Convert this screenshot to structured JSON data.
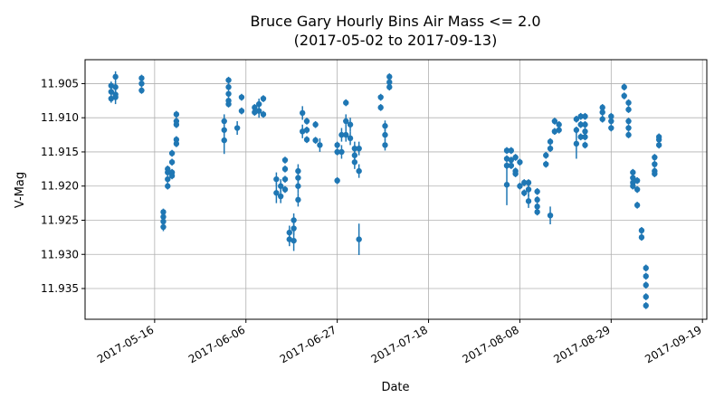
{
  "chart_data": {
    "type": "scatter",
    "title": "Bruce Gary Hourly Bins Air Mass <= 2.0",
    "subtitle": "(2017-05-02 to 2017-09-13)",
    "xlabel": "Date",
    "ylabel": "V-Mag",
    "y_inverted": true,
    "ylim": [
      11.9395,
      11.9015
    ],
    "xlim": [
      "2017-04-30",
      "2017-09-20"
    ],
    "grid": true,
    "color": "#1f77b4",
    "xticks": [
      "2017-05-16",
      "2017-06-06",
      "2017-06-27",
      "2017-07-18",
      "2017-08-08",
      "2017-08-29",
      "2017-09-19"
    ],
    "yticks": [
      "11.905",
      "11.910",
      "11.915",
      "11.920",
      "11.925",
      "11.930",
      "11.935"
    ],
    "points": [
      [
        "2017-05-06",
        11.9053,
        0.0006
      ],
      [
        "2017-05-06",
        11.9062,
        0.0006
      ],
      [
        "2017-05-06",
        11.9072,
        0.0006
      ],
      [
        "2017-05-07",
        11.904,
        0.0008
      ],
      [
        "2017-05-07",
        11.9055,
        0.0008
      ],
      [
        "2017-05-07",
        11.9066,
        0.0008
      ],
      [
        "2017-05-07",
        11.907,
        0.001
      ],
      [
        "2017-05-13",
        11.9042,
        0.0005
      ],
      [
        "2017-05-13",
        11.905,
        0.0005
      ],
      [
        "2017-05-13",
        11.906,
        0.0005
      ],
      [
        "2017-05-18",
        11.9238,
        0.0005
      ],
      [
        "2017-05-18",
        11.9245,
        0.0005
      ],
      [
        "2017-05-18",
        11.9252,
        0.0005
      ],
      [
        "2017-05-18",
        11.926,
        0.0006
      ],
      [
        "2017-05-19",
        11.918,
        0.0005
      ],
      [
        "2017-05-19",
        11.919,
        0.0005
      ],
      [
        "2017-05-19",
        11.92,
        0.0005
      ],
      [
        "2017-05-19",
        11.9175,
        0.0005
      ],
      [
        "2017-05-20",
        11.9152,
        0.0005
      ],
      [
        "2017-05-20",
        11.9165,
        0.0005
      ],
      [
        "2017-05-20",
        11.918,
        0.0005
      ],
      [
        "2017-05-20",
        11.9185,
        0.0005
      ],
      [
        "2017-05-21",
        11.9095,
        0.0005
      ],
      [
        "2017-05-21",
        11.9105,
        0.0005
      ],
      [
        "2017-05-21",
        11.911,
        0.0005
      ],
      [
        "2017-05-21",
        11.9132,
        0.0005
      ],
      [
        "2017-05-21",
        11.9138,
        0.0005
      ],
      [
        "2017-06-01",
        11.9105,
        0.001
      ],
      [
        "2017-06-01",
        11.9118,
        0.001
      ],
      [
        "2017-06-01",
        11.9133,
        0.002
      ],
      [
        "2017-06-02",
        11.9045,
        0.0005
      ],
      [
        "2017-06-02",
        11.9055,
        0.0005
      ],
      [
        "2017-06-02",
        11.9065,
        0.0005
      ],
      [
        "2017-06-02",
        11.9075,
        0.0005
      ],
      [
        "2017-06-02",
        11.908,
        0.0005
      ],
      [
        "2017-06-05",
        11.907,
        0.0005
      ],
      [
        "2017-06-05",
        11.909,
        0.0005
      ],
      [
        "2017-06-04",
        11.9115,
        0.001
      ],
      [
        "2017-06-08",
        11.9085,
        0.0005
      ],
      [
        "2017-06-08",
        11.9092,
        0.0005
      ],
      [
        "2017-06-09",
        11.908,
        0.0008
      ],
      [
        "2017-06-09",
        11.909,
        0.001
      ],
      [
        "2017-06-10",
        11.9072,
        0.0005
      ],
      [
        "2017-06-10",
        11.9095,
        0.0005
      ],
      [
        "2017-06-13",
        11.919,
        0.001
      ],
      [
        "2017-06-13",
        11.921,
        0.0015
      ],
      [
        "2017-06-14",
        11.92,
        0.001
      ],
      [
        "2017-06-14",
        11.9215,
        0.001
      ],
      [
        "2017-06-15",
        11.9162,
        0.0005
      ],
      [
        "2017-06-15",
        11.9175,
        0.0005
      ],
      [
        "2017-06-15",
        11.919,
        0.0005
      ],
      [
        "2017-06-15",
        11.9205,
        0.0005
      ],
      [
        "2017-06-16",
        11.9268,
        0.001
      ],
      [
        "2017-06-16",
        11.9278,
        0.001
      ],
      [
        "2017-06-17",
        11.925,
        0.001
      ],
      [
        "2017-06-17",
        11.9262,
        0.001
      ],
      [
        "2017-06-17",
        11.928,
        0.0015
      ],
      [
        "2017-06-18",
        11.9178,
        0.001
      ],
      [
        "2017-06-18",
        11.9188,
        0.001
      ],
      [
        "2017-06-18",
        11.92,
        0.001
      ],
      [
        "2017-06-18",
        11.922,
        0.001
      ],
      [
        "2017-06-19",
        11.9093,
        0.001
      ],
      [
        "2017-06-19",
        11.912,
        0.001
      ],
      [
        "2017-06-20",
        11.9105,
        0.0005
      ],
      [
        "2017-06-20",
        11.9118,
        0.0005
      ],
      [
        "2017-06-20",
        11.9132,
        0.0005
      ],
      [
        "2017-06-22",
        11.911,
        0.0005
      ],
      [
        "2017-06-22",
        11.9133,
        0.0005
      ],
      [
        "2017-06-23",
        11.914,
        0.001
      ],
      [
        "2017-06-27",
        11.914,
        0.0005
      ],
      [
        "2017-06-27",
        11.915,
        0.0005
      ],
      [
        "2017-06-27",
        11.9192,
        0.0005
      ],
      [
        "2017-06-28",
        11.9125,
        0.001
      ],
      [
        "2017-06-28",
        11.915,
        0.001
      ],
      [
        "2017-06-29",
        11.9078,
        0.0005
      ],
      [
        "2017-06-29",
        11.9105,
        0.001
      ],
      [
        "2017-06-29",
        11.9125,
        0.001
      ],
      [
        "2017-06-30",
        11.911,
        0.001
      ],
      [
        "2017-06-30",
        11.913,
        0.001
      ],
      [
        "2017-07-01",
        11.9145,
        0.001
      ],
      [
        "2017-07-01",
        11.9155,
        0.001
      ],
      [
        "2017-07-01",
        11.9165,
        0.001
      ],
      [
        "2017-07-02",
        11.9145,
        0.001
      ],
      [
        "2017-07-02",
        11.9178,
        0.001
      ],
      [
        "2017-07-02",
        11.9278,
        0.0023
      ],
      [
        "2017-07-07",
        11.907,
        0.0005
      ],
      [
        "2017-07-07",
        11.9085,
        0.0005
      ],
      [
        "2017-07-08",
        11.9112,
        0.0008
      ],
      [
        "2017-07-08",
        11.9125,
        0.0008
      ],
      [
        "2017-07-08",
        11.914,
        0.0008
      ],
      [
        "2017-07-09",
        11.904,
        0.0005
      ],
      [
        "2017-07-09",
        11.9048,
        0.0005
      ],
      [
        "2017-07-09",
        11.9055,
        0.0005
      ],
      [
        "2017-08-05",
        11.9148,
        0.0005
      ],
      [
        "2017-08-05",
        11.916,
        0.0005
      ],
      [
        "2017-08-05",
        11.917,
        0.0005
      ],
      [
        "2017-08-05",
        11.9198,
        0.003
      ],
      [
        "2017-08-06",
        11.9148,
        0.0005
      ],
      [
        "2017-08-06",
        11.9162,
        0.0005
      ],
      [
        "2017-08-06",
        11.917,
        0.0005
      ],
      [
        "2017-08-07",
        11.9158,
        0.0005
      ],
      [
        "2017-08-07",
        11.9178,
        0.0005
      ],
      [
        "2017-08-07",
        11.9182,
        0.0005
      ],
      [
        "2017-08-08",
        11.9165,
        0.0005
      ],
      [
        "2017-08-08",
        11.92,
        0.0005
      ],
      [
        "2017-08-09",
        11.9195,
        0.0005
      ],
      [
        "2017-08-09",
        11.921,
        0.0005
      ],
      [
        "2017-08-10",
        11.9195,
        0.0005
      ],
      [
        "2017-08-10",
        11.9205,
        0.001
      ],
      [
        "2017-08-10",
        11.9222,
        0.001
      ],
      [
        "2017-08-12",
        11.9208,
        0.0005
      ],
      [
        "2017-08-12",
        11.922,
        0.0005
      ],
      [
        "2017-08-12",
        11.923,
        0.0005
      ],
      [
        "2017-08-12",
        11.9238,
        0.0005
      ],
      [
        "2017-08-14",
        11.9155,
        0.0005
      ],
      [
        "2017-08-14",
        11.9168,
        0.0005
      ],
      [
        "2017-08-15",
        11.9135,
        0.0005
      ],
      [
        "2017-08-15",
        11.9145,
        0.0005
      ],
      [
        "2017-08-15",
        11.9243,
        0.0013
      ],
      [
        "2017-08-16",
        11.9105,
        0.0005
      ],
      [
        "2017-08-16",
        11.912,
        0.0005
      ],
      [
        "2017-08-17",
        11.911,
        0.0005
      ],
      [
        "2017-08-17",
        11.9118,
        0.0005
      ],
      [
        "2017-08-21",
        11.9102,
        0.0005
      ],
      [
        "2017-08-21",
        11.9118,
        0.0005
      ],
      [
        "2017-08-21",
        11.9138,
        0.0022
      ],
      [
        "2017-08-22",
        11.9098,
        0.0005
      ],
      [
        "2017-08-22",
        11.911,
        0.0005
      ],
      [
        "2017-08-22",
        11.9128,
        0.0005
      ],
      [
        "2017-08-23",
        11.9098,
        0.0005
      ],
      [
        "2017-08-23",
        11.911,
        0.0005
      ],
      [
        "2017-08-23",
        11.912,
        0.0005
      ],
      [
        "2017-08-23",
        11.9128,
        0.0005
      ],
      [
        "2017-08-23",
        11.914,
        0.0005
      ],
      [
        "2017-08-27",
        11.9085,
        0.0005
      ],
      [
        "2017-08-27",
        11.9092,
        0.0005
      ],
      [
        "2017-08-27",
        11.9102,
        0.0005
      ],
      [
        "2017-08-29",
        11.9098,
        0.0005
      ],
      [
        "2017-08-29",
        11.9105,
        0.0005
      ],
      [
        "2017-08-29",
        11.9115,
        0.0005
      ],
      [
        "2017-09-01",
        11.9055,
        0.0005
      ],
      [
        "2017-09-01",
        11.9068,
        0.0005
      ],
      [
        "2017-09-02",
        11.9078,
        0.0005
      ],
      [
        "2017-09-02",
        11.9088,
        0.0005
      ],
      [
        "2017-09-02",
        11.9105,
        0.0005
      ],
      [
        "2017-09-02",
        11.9115,
        0.0005
      ],
      [
        "2017-09-02",
        11.9125,
        0.0005
      ],
      [
        "2017-09-03",
        11.918,
        0.0005
      ],
      [
        "2017-09-03",
        11.9188,
        0.0005
      ],
      [
        "2017-09-03",
        11.9195,
        0.0005
      ],
      [
        "2017-09-03",
        11.92,
        0.0005
      ],
      [
        "2017-09-04",
        11.9192,
        0.0005
      ],
      [
        "2017-09-04",
        11.9205,
        0.0005
      ],
      [
        "2017-09-04",
        11.9228,
        0.0005
      ],
      [
        "2017-09-05",
        11.9265,
        0.0005
      ],
      [
        "2017-09-05",
        11.9275,
        0.0005
      ],
      [
        "2017-09-06",
        11.932,
        0.0005
      ],
      [
        "2017-09-06",
        11.9332,
        0.0005
      ],
      [
        "2017-09-06",
        11.9345,
        0.0005
      ],
      [
        "2017-09-06",
        11.9362,
        0.0005
      ],
      [
        "2017-09-06",
        11.9375,
        0.0005
      ],
      [
        "2017-09-08",
        11.9158,
        0.0005
      ],
      [
        "2017-09-08",
        11.9168,
        0.0005
      ],
      [
        "2017-09-08",
        11.9178,
        0.0005
      ],
      [
        "2017-09-08",
        11.9182,
        0.0005
      ],
      [
        "2017-09-09",
        11.9128,
        0.0005
      ],
      [
        "2017-09-09",
        11.9132,
        0.0005
      ],
      [
        "2017-09-09",
        11.914,
        0.0005
      ]
    ]
  }
}
